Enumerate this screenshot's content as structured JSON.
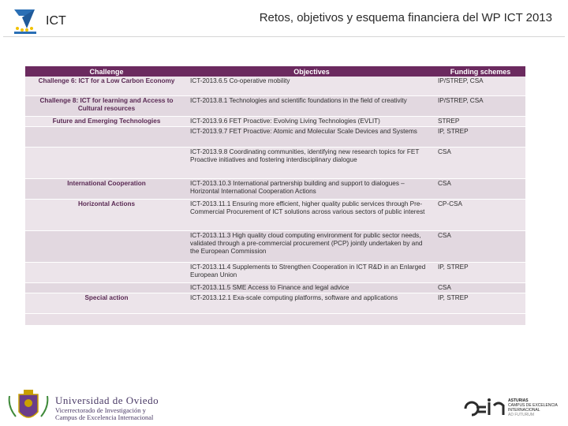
{
  "header": {
    "logo_icon": "fp7-logo-icon",
    "ict_label": "ICT",
    "title": "Retos, objetivos y esquema financiera del WP ICT 2013"
  },
  "table": {
    "headers": [
      "Challenge",
      "Objectives",
      "Funding schemes"
    ],
    "rows": [
      {
        "challenge": "Challenge 6: ICT for a Low Carbon Economy",
        "objective": "ICT-2013.6.5 Co-operative mobility",
        "funding": "IP/STREP, CSA"
      },
      {
        "challenge": "Challenge 8: ICT for learning and Access to Cultural resources",
        "objective": "ICT-2013.8.1 Technologies and scientific foundations in the field of creativity",
        "funding": "IP/STREP, CSA"
      },
      {
        "challenge": "Future and Emerging Technologies",
        "objective": "ICT-2013.9.6 FET Proactive: Evolving Living Technologies (EVLIT)",
        "funding": "STREP"
      },
      {
        "challenge": "",
        "objective": "ICT-2013.9.7 FET Proactive: Atomic and Molecular Scale Devices and Systems",
        "funding": "IP, STREP"
      },
      {
        "challenge": "",
        "objective": "ICT-2013.9.8 Coordinating communities, identifying new research topics for FET Proactive initiatives and fostering interdisciplinary dialogue",
        "funding": "CSA"
      },
      {
        "challenge": "International Cooperation",
        "objective": "ICT-2013.10.3 International partnership building and support to dialogues – Horizontal International Cooperation Actions",
        "funding": "CSA"
      },
      {
        "challenge": "Horizontal Actions",
        "objective": "ICT-2013.11.1 Ensuring more efficient, higher quality public services through Pre-Commercial Procurement of ICT solutions across various sectors of public interest",
        "funding": "CP-CSA"
      },
      {
        "challenge": "",
        "objective": "ICT-2013.11.3 High quality cloud computing environment for public sector needs, validated through a pre-commercial procurement (PCP) jointly undertaken by and the European Commission",
        "funding": "CSA"
      },
      {
        "challenge": "",
        "objective": "ICT-2013.11.4 Supplements to Strengthen Cooperation in ICT R&D in an Enlarged European Union",
        "funding": "IP, STREP"
      },
      {
        "challenge": "",
        "objective": "ICT-2013.11.5 SME Access to Finance and legal advice",
        "funding": "CSA"
      },
      {
        "challenge": "Special action",
        "objective": "ICT-2013.12.1 Exa-scale computing platforms, software and applications",
        "funding": "IP, STREP"
      }
    ]
  },
  "footer": {
    "uniovi_icon": "university-crest-icon",
    "uniovi_name": "Universidad de Oviedo",
    "uniovi_sub1": "Vicerrectorado de Investigación y",
    "uniovi_sub2": "Campus de Excelencia Internacional",
    "campus_icon": "campus-excelencia-logo-icon",
    "campus_l1": "ASTURIAS",
    "campus_l2": "CAMPUS DE EXCELENCIA",
    "campus_l3": "INTERNACIONAL",
    "campus_l4": "AD FUTURUM"
  },
  "colors": {
    "header_bg": "#6b2a5f",
    "challenge_text": "#5a2a54",
    "row_bg": "#ece4ea"
  }
}
